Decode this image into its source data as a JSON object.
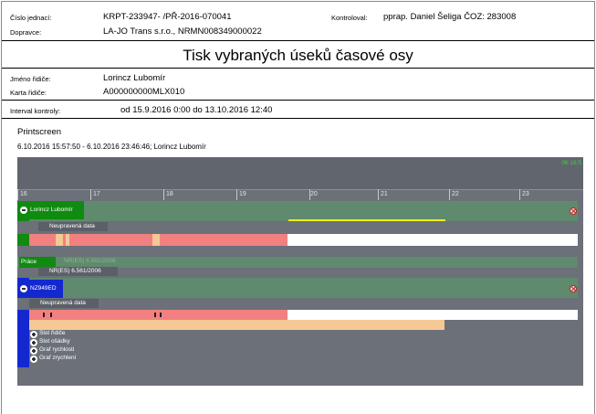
{
  "header": {
    "cislo_jednaci_label": "Číslo jednací:",
    "cislo_jednaci_value": "KRPT-233947-    /PŘ-2016-070041",
    "kontroloval_label": "Kontroloval:",
    "kontroloval_value": "pprap. Daniel Šeliga ČOZ: 283008",
    "dopravce_label": "Dopravce:",
    "dopravce_value": "LA-JO Trans s.r.o., NRMN008349000022"
  },
  "title": "Tisk vybraných úseků časové osy",
  "driver": {
    "jmeno_label": "Jméno řidiče:",
    "jmeno_value": "Lorincz Lubomír",
    "karta_label": "Karta řidiče:",
    "karta_value": "A000000000MLX010"
  },
  "interval": {
    "label": "Interval kontroly:",
    "value": "od 15.9.2016 0:00 do 13.10.2016 12:40"
  },
  "printscreen": {
    "section_title": "Printscreen",
    "subtitle": "6.10.2016 15:57:50 - 6.10.2016 23:46:46; Lorincz Lubomír"
  },
  "timeline": {
    "clock": "06:16:5",
    "hour_labels": [
      "16",
      "17",
      "18",
      "19",
      "20",
      "21",
      "22",
      "23"
    ],
    "driver_row": {
      "name": "Lorincz Lubomír",
      "unedited_label": "Neupravená data",
      "work_label": "Práce",
      "regulation_ghost": "NR(ES) 6.561/2006",
      "regulation_label": "NR(ES) 6.561/2006"
    },
    "vehicle_row": {
      "name": "NZ949ED",
      "unedited_label": "Neupravená data",
      "toggles": [
        "Slot řidiče",
        "Slot ošádky",
        "Graf rychlosti",
        "Graf zrychlení"
      ]
    },
    "colors": {
      "driver_green": "#108a10",
      "vehicle_blue": "#1428d0",
      "band_green": "#5f8a6d",
      "salmon": "#f28080",
      "peach": "#f5c896",
      "yellow": "#f0f000"
    }
  }
}
